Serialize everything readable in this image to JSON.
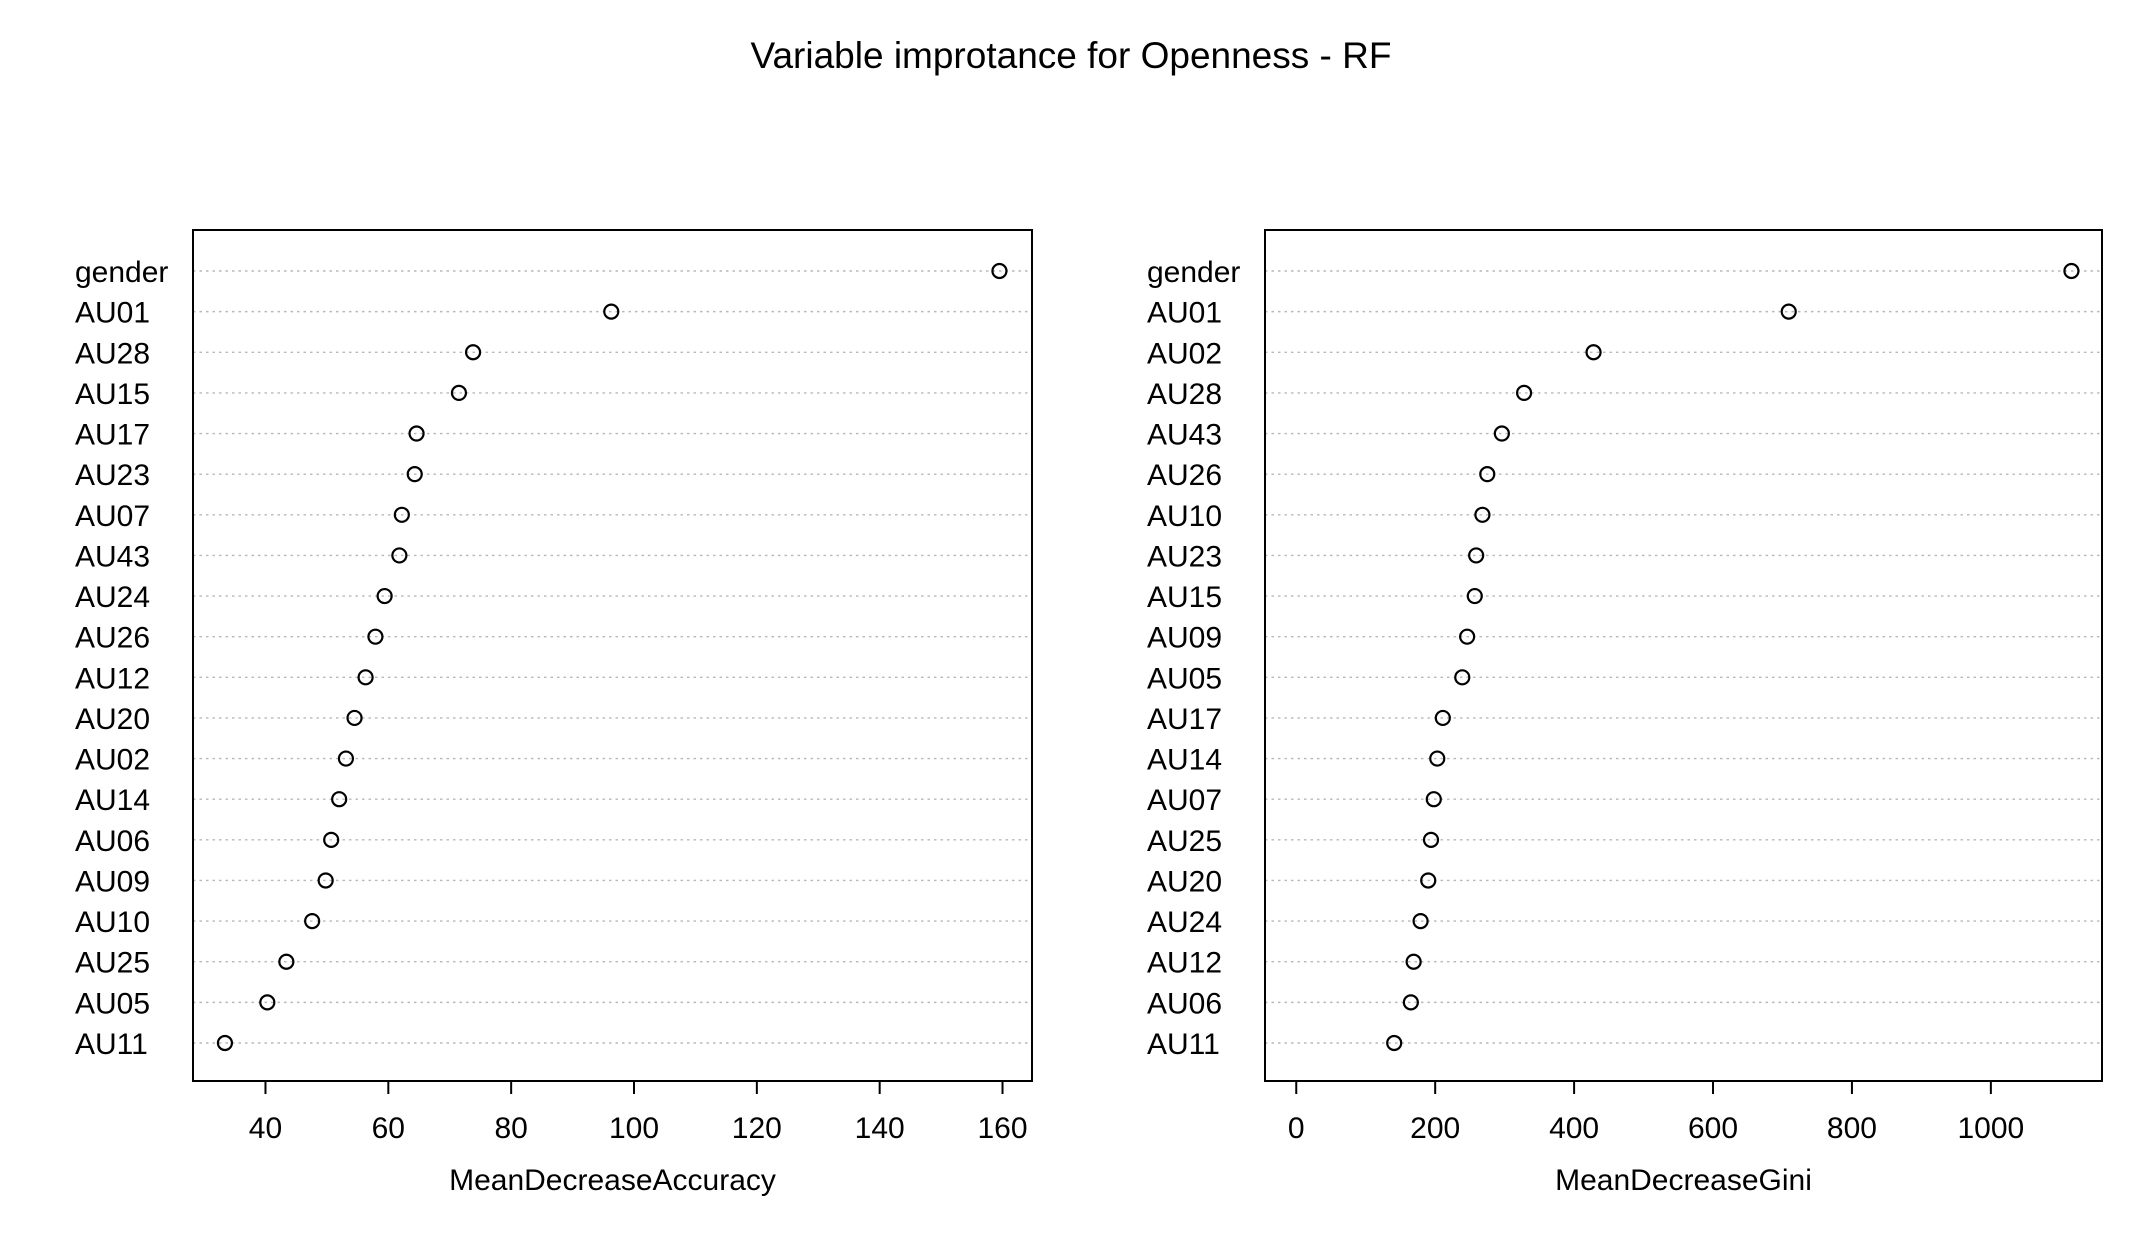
{
  "title": "Variable improtance for Openness - RF",
  "chart_data": [
    {
      "type": "scatter",
      "xlabel": "MeanDecreaseAccuracy",
      "xlim": [
        28.2,
        164.8
      ],
      "xticks": [
        40,
        60,
        80,
        100,
        120,
        140,
        160
      ],
      "grid": true,
      "points": [
        {
          "label": "gender",
          "value": 159.5
        },
        {
          "label": "AU01",
          "value": 96.3
        },
        {
          "label": "AU28",
          "value": 73.8
        },
        {
          "label": "AU15",
          "value": 71.5
        },
        {
          "label": "AU17",
          "value": 64.6
        },
        {
          "label": "AU23",
          "value": 64.3
        },
        {
          "label": "AU07",
          "value": 62.2
        },
        {
          "label": "AU43",
          "value": 61.8
        },
        {
          "label": "AU24",
          "value": 59.4
        },
        {
          "label": "AU26",
          "value": 57.9
        },
        {
          "label": "AU12",
          "value": 56.3
        },
        {
          "label": "AU20",
          "value": 54.5
        },
        {
          "label": "AU02",
          "value": 53.1
        },
        {
          "label": "AU14",
          "value": 52.0
        },
        {
          "label": "AU06",
          "value": 50.7
        },
        {
          "label": "AU09",
          "value": 49.8
        },
        {
          "label": "AU10",
          "value": 47.6
        },
        {
          "label": "AU25",
          "value": 43.4
        },
        {
          "label": "AU05",
          "value": 40.3
        },
        {
          "label": "AU11",
          "value": 33.4
        }
      ]
    },
    {
      "type": "scatter",
      "xlabel": "MeanDecreaseGini",
      "xlim": [
        -45,
        1160
      ],
      "xticks": [
        0,
        200,
        400,
        600,
        800,
        1000
      ],
      "grid": true,
      "points": [
        {
          "label": "gender",
          "value": 1116
        },
        {
          "label": "AU01",
          "value": 709
        },
        {
          "label": "AU02",
          "value": 428
        },
        {
          "label": "AU28",
          "value": 328
        },
        {
          "label": "AU43",
          "value": 296
        },
        {
          "label": "AU26",
          "value": 275
        },
        {
          "label": "AU10",
          "value": 268
        },
        {
          "label": "AU23",
          "value": 259
        },
        {
          "label": "AU15",
          "value": 257
        },
        {
          "label": "AU09",
          "value": 246
        },
        {
          "label": "AU05",
          "value": 239
        },
        {
          "label": "AU17",
          "value": 211
        },
        {
          "label": "AU14",
          "value": 203
        },
        {
          "label": "AU07",
          "value": 198
        },
        {
          "label": "AU25",
          "value": 194
        },
        {
          "label": "AU20",
          "value": 190
        },
        {
          "label": "AU24",
          "value": 179
        },
        {
          "label": "AU12",
          "value": 169
        },
        {
          "label": "AU06",
          "value": 165
        },
        {
          "label": "AU11",
          "value": 141
        }
      ]
    }
  ]
}
